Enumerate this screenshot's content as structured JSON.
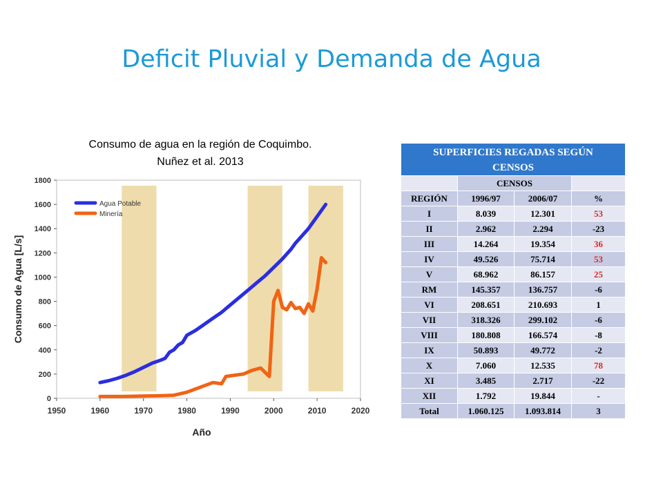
{
  "slide": {
    "title": "Deficit Pluvial y Demanda de Agua"
  },
  "caption": {
    "line1": "Consumo de agua en la región de Coquimbo.",
    "line2": "Nuñez et al. 2013"
  },
  "chart_data": {
    "type": "line",
    "title": "",
    "xlabel": "Año",
    "ylabel": "Consumo de Agua [L/s]",
    "xlim": [
      1950,
      2020
    ],
    "ylim": [
      0,
      1800
    ],
    "xticks": [
      1950,
      1960,
      1970,
      1980,
      1990,
      2000,
      2010,
      2020
    ],
    "yticks": [
      0,
      200,
      400,
      600,
      800,
      1000,
      1200,
      1400,
      1600,
      1800
    ],
    "legend_position": "top-left",
    "highlight_bands": [
      [
        1965,
        1973
      ],
      [
        1994,
        2002
      ],
      [
        2008,
        2016
      ]
    ],
    "band_color": "#efdcac",
    "series": [
      {
        "name": "Agua Potable",
        "color": "#2a2ee0",
        "x": [
          1960,
          1962,
          1964,
          1966,
          1968,
          1970,
          1972,
          1974,
          1975,
          1976,
          1977,
          1978,
          1979,
          1980,
          1982,
          1984,
          1986,
          1988,
          1990,
          1992,
          1994,
          1996,
          1998,
          2000,
          2002,
          2004,
          2005,
          2006,
          2008,
          2010,
          2012
        ],
        "values": [
          130,
          145,
          165,
          190,
          220,
          255,
          290,
          315,
          330,
          380,
          400,
          440,
          460,
          520,
          560,
          610,
          660,
          710,
          770,
          830,
          890,
          950,
          1010,
          1080,
          1150,
          1230,
          1280,
          1320,
          1400,
          1500,
          1600
        ]
      },
      {
        "name": "Minería",
        "color": "#f06414",
        "x": [
          1960,
          1965,
          1970,
          1975,
          1977,
          1980,
          1983,
          1986,
          1988,
          1989,
          1990,
          1993,
          1995,
          1997,
          1999,
          2000,
          2001,
          2002,
          2003,
          2004,
          2005,
          2006,
          2007,
          2008,
          2009,
          2010,
          2011,
          2012
        ],
        "values": [
          15,
          15,
          18,
          22,
          25,
          50,
          90,
          130,
          120,
          180,
          185,
          200,
          230,
          250,
          180,
          800,
          890,
          750,
          730,
          790,
          740,
          750,
          700,
          780,
          720,
          900,
          1160,
          1120
        ]
      }
    ]
  },
  "table": {
    "title_line1": "SUPERFICIES REGADAS SEGÚN",
    "title_line2": "CENSOS",
    "censos_label": "CENSOS",
    "headers": [
      "REGIÓN",
      "1996/97",
      "2006/07",
      "%"
    ],
    "rows": [
      {
        "region": "I",
        "c1996": "8.039",
        "c2006": "12.301",
        "pct": "53",
        "red": true
      },
      {
        "region": "II",
        "c1996": "2.962",
        "c2006": "2.294",
        "pct": "-23",
        "red": false
      },
      {
        "region": "III",
        "c1996": "14.264",
        "c2006": "19.354",
        "pct": "36",
        "red": true
      },
      {
        "region": "IV",
        "c1996": "49.526",
        "c2006": "75.714",
        "pct": "53",
        "red": true
      },
      {
        "region": "V",
        "c1996": "68.962",
        "c2006": "86.157",
        "pct": "25",
        "red": true
      },
      {
        "region": "RM",
        "c1996": "145.357",
        "c2006": "136.757",
        "pct": "-6",
        "red": false
      },
      {
        "region": "VI",
        "c1996": "208.651",
        "c2006": "210.693",
        "pct": "1",
        "red": false
      },
      {
        "region": "VII",
        "c1996": "318.326",
        "c2006": "299.102",
        "pct": "-6",
        "red": false
      },
      {
        "region": "VIII",
        "c1996": "180.808",
        "c2006": "166.574",
        "pct": "-8",
        "red": false
      },
      {
        "region": "IX",
        "c1996": "50.893",
        "c2006": "49.772",
        "pct": "-2",
        "red": false
      },
      {
        "region": "X",
        "c1996": "7.060",
        "c2006": "12.535",
        "pct": "78",
        "red": true
      },
      {
        "region": "XI",
        "c1996": "3.485",
        "c2006": "2.717",
        "pct": "-22",
        "red": false
      },
      {
        "region": "XII",
        "c1996": "1.792",
        "c2006": "19.844",
        "pct": "-",
        "red": false
      },
      {
        "region": "Total",
        "c1996": "1.060.125",
        "c2006": "1.093.814",
        "pct": "3",
        "red": false
      }
    ]
  }
}
